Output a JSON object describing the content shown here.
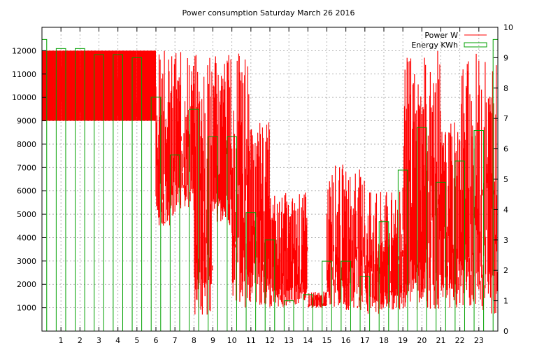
{
  "chart_data": {
    "type": "line",
    "title": "Power consumption Saturday March 26 2016",
    "x": {
      "ticks": [
        1,
        2,
        3,
        4,
        5,
        6,
        7,
        8,
        9,
        10,
        11,
        12,
        13,
        14,
        15,
        16,
        17,
        18,
        19,
        20,
        21,
        22,
        23
      ],
      "range": [
        0,
        24
      ]
    },
    "y": {
      "ticks": [
        1000,
        2000,
        3000,
        4000,
        5000,
        6000,
        7000,
        8000,
        9000,
        10000,
        11000,
        12000
      ],
      "range": [
        0,
        13000
      ],
      "grid": true
    },
    "y2": {
      "ticks": [
        0,
        1,
        2,
        3,
        4,
        5,
        6,
        7,
        8,
        9,
        10
      ],
      "range": [
        0,
        10
      ]
    },
    "legend": {
      "placement": "top-right"
    },
    "series": [
      {
        "name": "Power W",
        "axis": "y",
        "color": "#ff0000",
        "style": "impulses-band",
        "hourly_band": [
          [
            9000,
            12000
          ],
          [
            9000,
            12000
          ],
          [
            9000,
            12000
          ],
          [
            9000,
            12000
          ],
          [
            9000,
            12000
          ],
          [
            9000,
            12000
          ],
          [
            4500,
            12000
          ],
          [
            5100,
            12000
          ],
          [
            700,
            12000
          ],
          [
            4500,
            12000
          ],
          [
            1000,
            12000
          ],
          [
            1100,
            9000
          ],
          [
            1000,
            6000
          ],
          [
            1100,
            6000
          ],
          [
            1000,
            1700
          ],
          [
            1000,
            7200
          ],
          [
            900,
            7000
          ],
          [
            600,
            6000
          ],
          [
            900,
            6000
          ],
          [
            900,
            12000
          ],
          [
            900,
            12000
          ],
          [
            1000,
            9000
          ],
          [
            1000,
            12000
          ],
          [
            700,
            12000
          ]
        ]
      },
      {
        "name": "Energy KWh",
        "axis": "y2",
        "color": "#00a000",
        "style": "steps",
        "x": [
          0,
          0.25,
          0.75,
          1.25,
          1.75,
          2.25,
          2.75,
          3.25,
          3.75,
          4.25,
          4.75,
          5.25,
          5.75,
          6.25,
          6.75,
          7.25,
          7.75,
          8.25,
          8.75,
          9.25,
          9.75,
          10.25,
          10.75,
          11.25,
          11.75,
          12.25,
          12.75,
          13.25,
          13.75,
          14.25,
          14.75,
          15.25,
          15.75,
          16.25,
          16.75,
          17.25,
          17.75,
          18.25,
          18.75,
          19.25,
          19.75,
          20.25,
          20.75,
          21.25,
          21.75,
          22.25,
          22.75,
          23.25,
          23.75
        ],
        "values": [
          9.6,
          0,
          9.3,
          0,
          9.3,
          0,
          9.1,
          0,
          9.1,
          0,
          9.0,
          0,
          7.7,
          0,
          5.8,
          0,
          7.3,
          0,
          6.4,
          0,
          6.4,
          0,
          3.9,
          0,
          3.0,
          0,
          1.0,
          0,
          1.2,
          0,
          2.3,
          0,
          2.3,
          0,
          1.8,
          0,
          3.6,
          0,
          5.3,
          0,
          6.7,
          0,
          4.9,
          0,
          5.6,
          0,
          6.6,
          0,
          9.6
        ]
      }
    ]
  }
}
